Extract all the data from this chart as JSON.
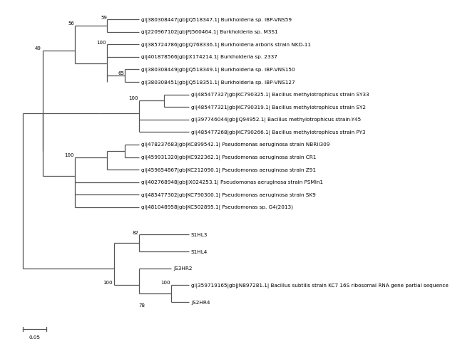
{
  "title": "",
  "scale_bar_label": "0.05",
  "background_color": "#ffffff",
  "line_color": "#555555",
  "text_color": "#000000",
  "font_size": 5.2,
  "bootstrap_font_size": 5.0,
  "taxa": [
    "gi|380308447|gb|JQ518347.1| Burkholderia sp. IBP-VNS59",
    "gi|220967102|gb|FJ560464.1| Burkholderia sp. M3S1",
    "gi|385724786|gb|JQ768336.1| Burkholderia arboris strain NKD-11",
    "gi|401878566|gb|JX174214.1| Burkholderia sp. 2337",
    "gi|380308449|gb|JQ518349.1| Burkholderia sp. IBP-VNS150",
    "gi|380308451|gb|JQ518351.1| Burkholderia sp. IBP-VNS127",
    "gi|485477327|gb|KC790325.1| Bacillus methylotrophicus strain SY33",
    "gi|485477321|gb|KC790319.1| Bacillus methylotrophicus strain SY2",
    "gi|397746044|gb|JQ94952.1| Bacillus methylotrophicus strain-Y45",
    "gi|485477268|gb|KC790266.1| Bacillus methylotrophicus strain PY3",
    "gi|478237683|gb|KC899542.1| Pseudomonas aeruginosa strain NBRII309",
    "gi|459931320|gb|KC922362.1| Pseudomonas aeruginosa strain CR1",
    "gi|459654867|gb|KC212090.1| Pseudomonas aeruginosa strain Z91",
    "gi|402768948|gb|JX024253.1| Pseudomonas aeruginosa strain PSMIn1",
    "gi|485477302|gb|KC790300.1| Pseudomonas aeruginosa strain SK9",
    "gi|481048958|gb|KC502895.1| Pseudomonas sp. G4(2013)",
    "S1HL3",
    "S1HL4",
    "JS3HR2",
    "gi|359719165|gb|JN897281.1| Bacillus subtilis strain KC7 16S ribosomal RNA gene partial sequence",
    "JS2HR4"
  ]
}
